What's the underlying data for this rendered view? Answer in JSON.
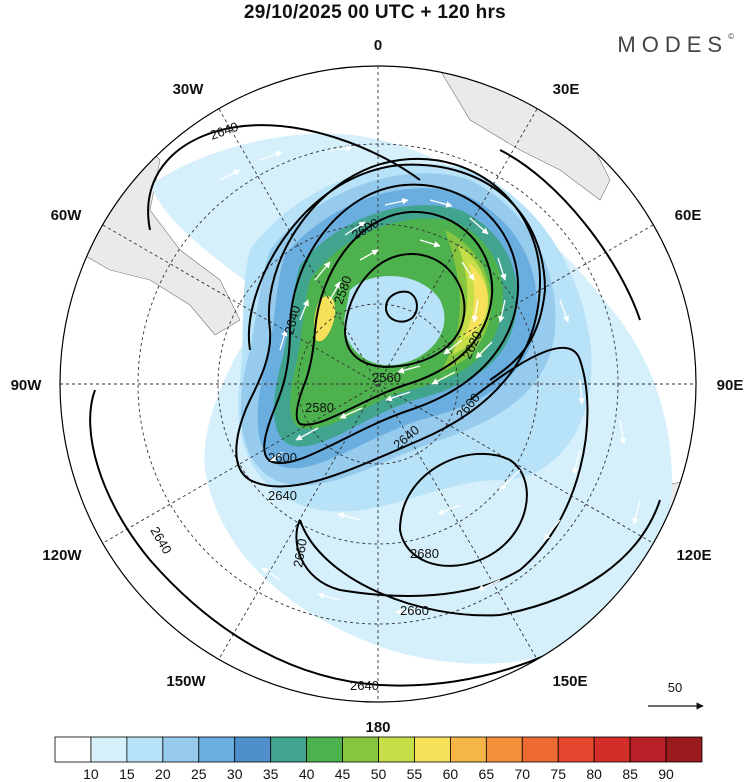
{
  "title": "29/10/2025  00 UTC  + 120 hrs",
  "brand": "MODES",
  "brand_mark": "©",
  "longitude_labels": {
    "lon_0": "0",
    "lon_30e": "30E",
    "lon_60e": "60E",
    "lon_90e": "90E",
    "lon_120e": "120E",
    "lon_150e": "150E",
    "lon_180": "180",
    "lon_150w": "150W",
    "lon_120w": "120W",
    "lon_90w": "90W",
    "lon_60w": "60W",
    "lon_30w": "30W"
  },
  "contour_labels": [
    "2640",
    "2600",
    "2580",
    "2640",
    "2580",
    "2560",
    "2620",
    "2660",
    "2640",
    "2600",
    "2640",
    "2660",
    "2680",
    "2660",
    "2640",
    "2640"
  ],
  "vector_reference": "50",
  "colorbar": {
    "ticks": [
      "10",
      "15",
      "20",
      "25",
      "30",
      "35",
      "40",
      "45",
      "50",
      "55",
      "60",
      "65",
      "70",
      "75",
      "80",
      "85",
      "90"
    ],
    "colors": [
      "#ffffff",
      "#d5f0fb",
      "#b8e2f7",
      "#96cbee",
      "#6aaee0",
      "#4f8fcb",
      "#41a48f",
      "#4db24d",
      "#86c540",
      "#c6df48",
      "#f7e05a",
      "#f6b547",
      "#f3903a",
      "#ee6a33",
      "#e5472e",
      "#d22e2a",
      "#b81f26",
      "#991b1e"
    ]
  },
  "colors": {
    "land": "#eaeaea",
    "contour": "#000000",
    "vectors": "#ffffff"
  }
}
